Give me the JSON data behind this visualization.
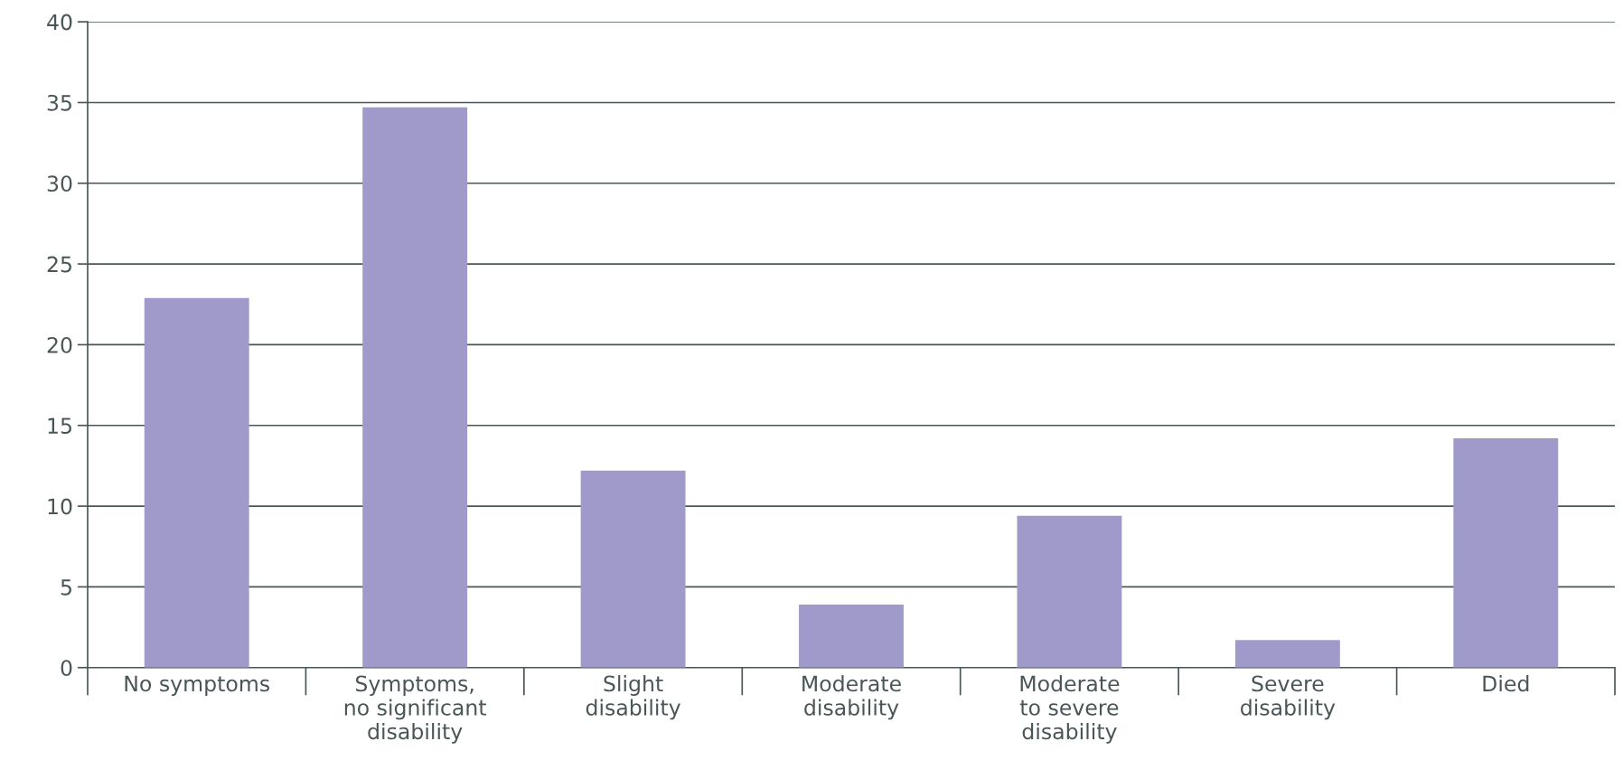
{
  "chart_data": {
    "type": "bar",
    "categories": [
      "No symptoms",
      "Symptoms,\nno significant\ndisability",
      "Slight\ndisability",
      "Moderate\ndisability",
      "Moderate\nto severe\ndisability",
      "Severe\ndisability",
      "Died"
    ],
    "values": [
      22.9,
      34.7,
      12.2,
      3.9,
      9.4,
      1.7,
      14.2
    ],
    "color": "#a09acb",
    "ylim": [
      0,
      40
    ],
    "yticks": [
      0,
      5,
      10,
      15,
      20,
      25,
      30,
      35,
      40
    ],
    "grid": "y"
  }
}
